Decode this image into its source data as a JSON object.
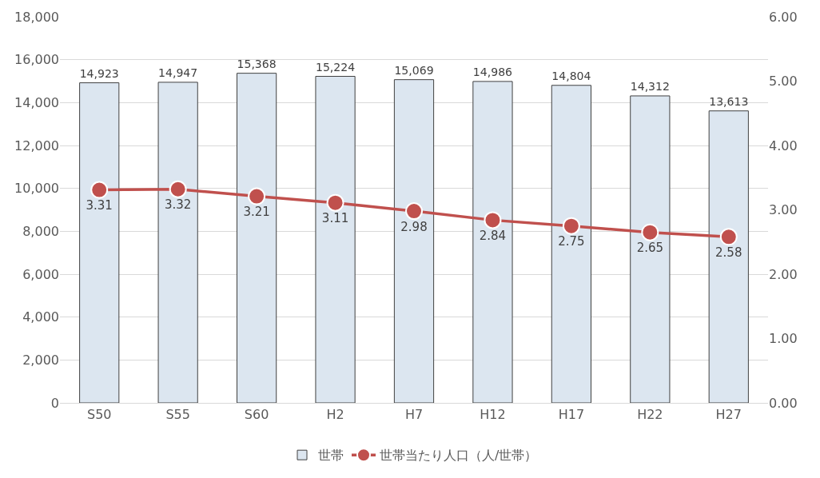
{
  "chart_data": {
    "type": "bar",
    "categories": [
      "S50",
      "S55",
      "S60",
      "H2",
      "H7",
      "H12",
      "H17",
      "H22",
      "H27"
    ],
    "series": [
      {
        "name": "世帯",
        "color": "#dce6f0",
        "values": [
          14923,
          14947,
          15368,
          15224,
          15069,
          14986,
          14804,
          14312,
          13613
        ],
        "value_labels": [
          "14,923",
          "14,947",
          "15,368",
          "15,224",
          "15,069",
          "14,986",
          "14,804",
          "14,312",
          "13,613"
        ]
      },
      {
        "name": "世帯当たり人口（人/世帯）",
        "type": "line",
        "axis": "y2",
        "color": "#c0504d",
        "marker": "circle",
        "values": [
          3.31,
          3.32,
          3.21,
          3.11,
          2.98,
          2.84,
          2.75,
          2.65,
          2.58
        ],
        "value_labels": [
          "3.31",
          "3.32",
          "3.21",
          "3.11",
          "2.98",
          "2.84",
          "2.75",
          "2.65",
          "2.58"
        ]
      }
    ],
    "ylim": [
      0,
      18000
    ],
    "yticks": [
      {
        "value": 0,
        "label": "0"
      },
      {
        "value": 2000,
        "label": "2,000"
      },
      {
        "value": 4000,
        "label": "4,000"
      },
      {
        "value": 6000,
        "label": "6,000"
      },
      {
        "value": 8000,
        "label": "8,000"
      },
      {
        "value": 10000,
        "label": "10,000"
      },
      {
        "value": 12000,
        "label": "12,000"
      },
      {
        "value": 14000,
        "label": "14,000"
      },
      {
        "value": 16000,
        "label": "16,000"
      },
      {
        "value": 18000,
        "label": "18,000"
      }
    ],
    "y2lim": [
      0,
      6
    ],
    "y2ticks": [
      {
        "value": 0,
        "label": "0.00"
      },
      {
        "value": 1,
        "label": "1.00"
      },
      {
        "value": 2,
        "label": "2.00"
      },
      {
        "value": 3,
        "label": "3.00"
      },
      {
        "value": 4,
        "label": "4.00"
      },
      {
        "value": 5,
        "label": "5.00"
      },
      {
        "value": 6,
        "label": "6.00"
      }
    ],
    "grid": "y",
    "legend": "bottom"
  }
}
